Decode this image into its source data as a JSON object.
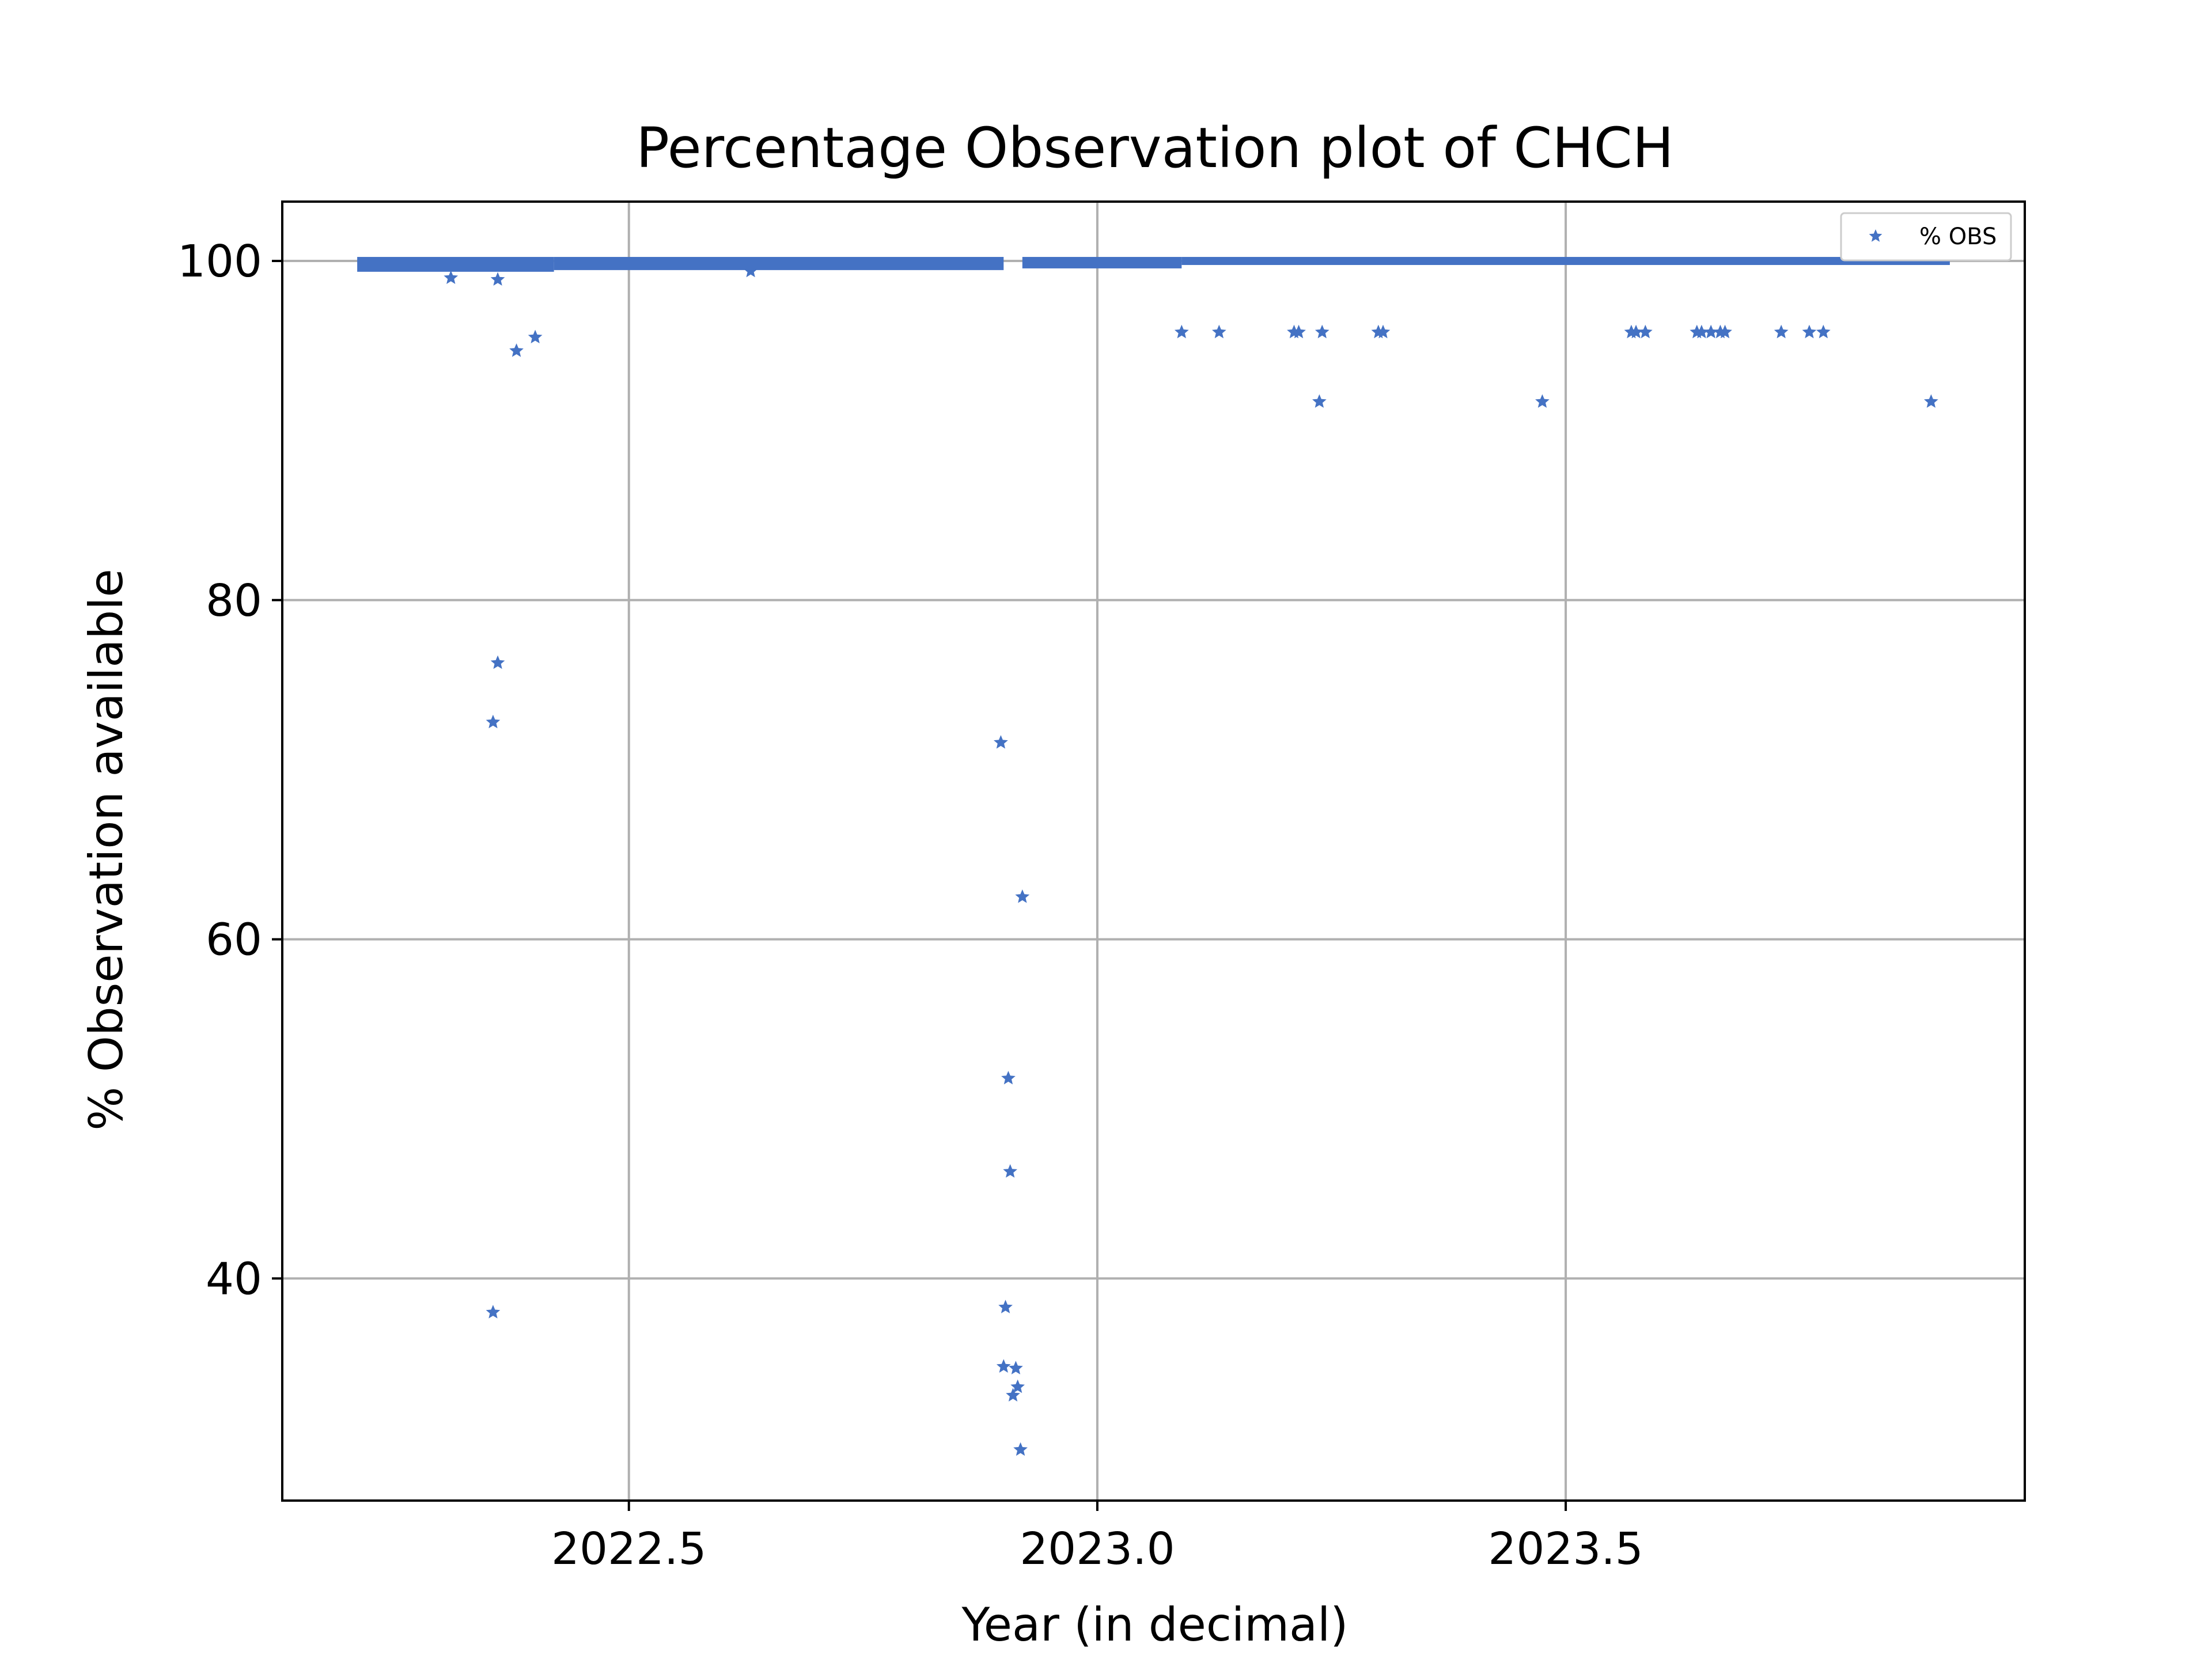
{
  "chart_data": {
    "type": "scatter",
    "title": "Percentage Observation plot of CHCH",
    "xlabel": "Year (in decimal)",
    "ylabel": "% Observation available",
    "xlim": [
      2022.13,
      2023.99
    ],
    "ylim": [
      26.9,
      103.5
    ],
    "xticks": [
      2022.5,
      2023.0,
      2023.5
    ],
    "xtick_labels": [
      "2022.5",
      "2023.0",
      "2023.5"
    ],
    "yticks": [
      40,
      60,
      80,
      100
    ],
    "ytick_labels": [
      "40",
      "60",
      "80",
      "100"
    ],
    "grid": true,
    "legend": {
      "position": "top-right",
      "entries": [
        "% OBS"
      ]
    },
    "colors": {
      "series": "#4472c4",
      "grid": "#b0b0b0",
      "axes": "#000000"
    },
    "series": [
      {
        "name": "% OBS",
        "marker": "star",
        "baseline": {
          "description_points": "dense near-100 band",
          "segments": [
            {
              "x_start": 2022.21,
              "x_end": 2022.42,
              "y_min": 99.6,
              "y_max": 100.0
            },
            {
              "x_start": 2022.42,
              "x_end": 2022.9,
              "y_min": 99.7,
              "y_max": 100.0
            },
            {
              "x_start": 2022.92,
              "x_end": 2023.09,
              "y_min": 99.8,
              "y_max": 100.0
            },
            {
              "x_start": 2023.09,
              "x_end": 2023.91,
              "y_min": 100.0,
              "y_max": 100.0
            }
          ]
        },
        "points": [
          {
            "x": 2022.31,
            "y": 99.0
          },
          {
            "x": 2022.36,
            "y": 98.9
          },
          {
            "x": 2022.63,
            "y": 99.4
          },
          {
            "x": 2022.38,
            "y": 94.7
          },
          {
            "x": 2022.4,
            "y": 95.5
          },
          {
            "x": 2022.36,
            "y": 76.3
          },
          {
            "x": 2022.355,
            "y": 72.8
          },
          {
            "x": 2022.355,
            "y": 38.0
          },
          {
            "x": 2022.897,
            "y": 71.6
          },
          {
            "x": 2022.92,
            "y": 62.5
          },
          {
            "x": 2022.905,
            "y": 51.8
          },
          {
            "x": 2022.907,
            "y": 46.3
          },
          {
            "x": 2022.902,
            "y": 38.3
          },
          {
            "x": 2022.9,
            "y": 34.8
          },
          {
            "x": 2022.913,
            "y": 34.7
          },
          {
            "x": 2022.915,
            "y": 33.6
          },
          {
            "x": 2022.91,
            "y": 33.1
          },
          {
            "x": 2022.918,
            "y": 29.9
          },
          {
            "x": 2023.09,
            "y": 95.8
          },
          {
            "x": 2023.13,
            "y": 95.8
          },
          {
            "x": 2023.21,
            "y": 95.8
          },
          {
            "x": 2023.215,
            "y": 95.8
          },
          {
            "x": 2023.24,
            "y": 95.8
          },
          {
            "x": 2023.237,
            "y": 91.7
          },
          {
            "x": 2023.3,
            "y": 95.8
          },
          {
            "x": 2023.305,
            "y": 95.8
          },
          {
            "x": 2023.475,
            "y": 91.7
          },
          {
            "x": 2023.57,
            "y": 95.8
          },
          {
            "x": 2023.575,
            "y": 95.8
          },
          {
            "x": 2023.585,
            "y": 95.8
          },
          {
            "x": 2023.64,
            "y": 95.8
          },
          {
            "x": 2023.645,
            "y": 95.8
          },
          {
            "x": 2023.655,
            "y": 95.8
          },
          {
            "x": 2023.665,
            "y": 95.8
          },
          {
            "x": 2023.67,
            "y": 95.8
          },
          {
            "x": 2023.73,
            "y": 95.8
          },
          {
            "x": 2023.76,
            "y": 95.8
          },
          {
            "x": 2023.775,
            "y": 95.8
          },
          {
            "x": 2023.89,
            "y": 91.7
          }
        ]
      }
    ]
  }
}
